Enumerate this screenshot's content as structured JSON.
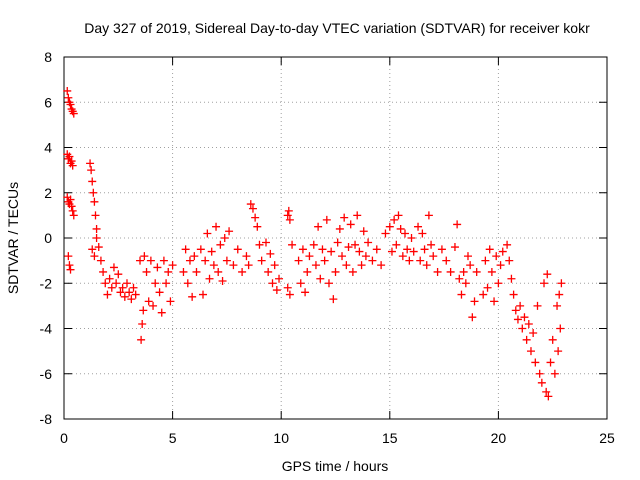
{
  "chart_data": {
    "type": "scatter",
    "title": "Day 327 of 2019, Sidereal Day-to-day VTEC variation (SDTVAR) for receiver kokr",
    "xlabel": "GPS time / hours",
    "ylabel": "SDTVAR / TECUs",
    "xlim": [
      0,
      25
    ],
    "ylim": [
      -8,
      8
    ],
    "xticks": [
      0,
      5,
      10,
      15,
      20,
      25
    ],
    "yticks": [
      -8,
      -6,
      -4,
      -2,
      0,
      2,
      4,
      6,
      8
    ],
    "grid": true,
    "marker": "+",
    "color": "#ff0000",
    "series": [
      {
        "name": "SDTVAR",
        "points": [
          [
            0.15,
            6.5
          ],
          [
            0.2,
            6.2
          ],
          [
            0.25,
            6.0
          ],
          [
            0.3,
            5.9
          ],
          [
            0.35,
            5.7
          ],
          [
            0.4,
            5.6
          ],
          [
            0.45,
            5.5
          ],
          [
            0.15,
            3.7
          ],
          [
            0.2,
            3.5
          ],
          [
            0.25,
            3.6
          ],
          [
            0.3,
            3.3
          ],
          [
            0.35,
            3.4
          ],
          [
            0.4,
            3.2
          ],
          [
            0.15,
            1.8
          ],
          [
            0.2,
            1.6
          ],
          [
            0.25,
            1.5
          ],
          [
            0.3,
            1.7
          ],
          [
            0.35,
            1.4
          ],
          [
            0.4,
            1.2
          ],
          [
            0.45,
            1.0
          ],
          [
            0.2,
            -0.8
          ],
          [
            0.25,
            -1.2
          ],
          [
            0.3,
            -1.4
          ],
          [
            1.2,
            3.3
          ],
          [
            1.25,
            3.0
          ],
          [
            1.3,
            2.5
          ],
          [
            1.35,
            2.0
          ],
          [
            1.4,
            1.6
          ],
          [
            1.45,
            1.0
          ],
          [
            1.5,
            0.4
          ],
          [
            1.3,
            -0.5
          ],
          [
            1.4,
            -0.8
          ],
          [
            1.5,
            0.0
          ],
          [
            1.6,
            -0.4
          ],
          [
            1.7,
            -1.0
          ],
          [
            1.8,
            -1.5
          ],
          [
            1.9,
            -2.0
          ],
          [
            2.0,
            -2.5
          ],
          [
            2.1,
            -1.8
          ],
          [
            2.2,
            -2.2
          ],
          [
            2.3,
            -1.3
          ],
          [
            2.4,
            -2.0
          ],
          [
            2.5,
            -1.6
          ],
          [
            2.6,
            -2.4
          ],
          [
            2.7,
            -2.2
          ],
          [
            2.8,
            -2.6
          ],
          [
            2.9,
            -2.0
          ],
          [
            3.0,
            -2.4
          ],
          [
            3.1,
            -2.7
          ],
          [
            3.2,
            -2.2
          ],
          [
            3.3,
            -2.5
          ],
          [
            3.5,
            -1.0
          ],
          [
            3.55,
            -4.5
          ],
          [
            3.6,
            -3.8
          ],
          [
            3.65,
            -3.2
          ],
          [
            3.7,
            -0.8
          ],
          [
            3.8,
            -1.5
          ],
          [
            3.9,
            -2.8
          ],
          [
            4.0,
            -1.0
          ],
          [
            4.1,
            -3.0
          ],
          [
            4.2,
            -2.0
          ],
          [
            4.3,
            -1.3
          ],
          [
            4.4,
            -2.4
          ],
          [
            4.5,
            -3.3
          ],
          [
            4.6,
            -1.0
          ],
          [
            4.7,
            -2.0
          ],
          [
            4.8,
            -1.5
          ],
          [
            4.9,
            -2.8
          ],
          [
            5.0,
            -1.2
          ],
          [
            5.5,
            -1.5
          ],
          [
            5.6,
            -0.5
          ],
          [
            5.7,
            -2.0
          ],
          [
            5.8,
            -1.0
          ],
          [
            5.9,
            -2.6
          ],
          [
            6.0,
            -0.8
          ],
          [
            6.1,
            -1.5
          ],
          [
            6.3,
            -0.5
          ],
          [
            6.4,
            -2.5
          ],
          [
            6.5,
            -1.0
          ],
          [
            6.6,
            0.2
          ],
          [
            6.7,
            -1.8
          ],
          [
            6.8,
            -0.6
          ],
          [
            6.9,
            -1.2
          ],
          [
            7.0,
            0.5
          ],
          [
            7.1,
            -1.5
          ],
          [
            7.2,
            -0.3
          ],
          [
            7.3,
            -1.9
          ],
          [
            7.4,
            0.0
          ],
          [
            7.5,
            -1.0
          ],
          [
            7.6,
            0.3
          ],
          [
            7.8,
            -1.2
          ],
          [
            8.0,
            -0.5
          ],
          [
            8.2,
            -1.5
          ],
          [
            8.4,
            -0.8
          ],
          [
            8.5,
            -1.2
          ],
          [
            8.6,
            1.5
          ],
          [
            8.7,
            1.3
          ],
          [
            8.8,
            0.9
          ],
          [
            8.9,
            0.5
          ],
          [
            9.0,
            -0.3
          ],
          [
            9.1,
            -1.0
          ],
          [
            9.3,
            -0.2
          ],
          [
            9.4,
            -1.5
          ],
          [
            9.5,
            -0.7
          ],
          [
            9.6,
            -2.0
          ],
          [
            9.7,
            -1.2
          ],
          [
            9.8,
            -2.3
          ],
          [
            9.9,
            -1.8
          ],
          [
            10.3,
            1.0
          ],
          [
            10.35,
            1.2
          ],
          [
            10.4,
            0.8
          ],
          [
            10.3,
            -2.2
          ],
          [
            10.4,
            -2.5
          ],
          [
            10.5,
            -0.3
          ],
          [
            10.8,
            -1.0
          ],
          [
            10.9,
            -2.0
          ],
          [
            11.0,
            -0.5
          ],
          [
            11.1,
            -2.4
          ],
          [
            11.2,
            -1.5
          ],
          [
            11.3,
            -0.8
          ],
          [
            11.5,
            -0.3
          ],
          [
            11.6,
            -1.2
          ],
          [
            11.7,
            0.5
          ],
          [
            11.8,
            -1.8
          ],
          [
            11.9,
            -0.5
          ],
          [
            12.0,
            -1.0
          ],
          [
            12.1,
            0.8
          ],
          [
            12.2,
            -2.0
          ],
          [
            12.3,
            -0.6
          ],
          [
            12.4,
            -2.7
          ],
          [
            12.5,
            -1.5
          ],
          [
            12.6,
            -0.2
          ],
          [
            12.7,
            0.4
          ],
          [
            12.8,
            -0.8
          ],
          [
            12.9,
            0.9
          ],
          [
            13.0,
            -1.2
          ],
          [
            13.1,
            -0.4
          ],
          [
            13.2,
            0.6
          ],
          [
            13.3,
            -1.5
          ],
          [
            13.4,
            -0.3
          ],
          [
            13.5,
            1.0
          ],
          [
            13.6,
            -0.6
          ],
          [
            13.7,
            -1.2
          ],
          [
            13.8,
            0.3
          ],
          [
            13.9,
            -0.8
          ],
          [
            14.0,
            -0.2
          ],
          [
            14.2,
            -1.0
          ],
          [
            14.4,
            -0.5
          ],
          [
            14.6,
            -1.2
          ],
          [
            14.8,
            0.2
          ],
          [
            15.0,
            0.5
          ],
          [
            15.1,
            -0.6
          ],
          [
            15.2,
            0.8
          ],
          [
            15.3,
            -0.3
          ],
          [
            15.4,
            1.0
          ],
          [
            15.5,
            0.4
          ],
          [
            15.6,
            -0.8
          ],
          [
            15.7,
            0.2
          ],
          [
            15.8,
            -0.5
          ],
          [
            15.9,
            -1.0
          ],
          [
            16.0,
            0.0
          ],
          [
            16.1,
            -0.6
          ],
          [
            16.3,
            0.5
          ],
          [
            16.4,
            -1.0
          ],
          [
            16.5,
            0.2
          ],
          [
            16.6,
            -0.5
          ],
          [
            16.7,
            -1.2
          ],
          [
            16.8,
            1.0
          ],
          [
            16.9,
            -0.3
          ],
          [
            17.0,
            -0.8
          ],
          [
            17.2,
            -1.5
          ],
          [
            17.4,
            -0.5
          ],
          [
            17.6,
            -1.0
          ],
          [
            17.8,
            -1.5
          ],
          [
            18.0,
            -0.4
          ],
          [
            18.1,
            0.6
          ],
          [
            18.2,
            -1.8
          ],
          [
            18.3,
            -2.5
          ],
          [
            18.4,
            -1.5
          ],
          [
            18.5,
            -2.0
          ],
          [
            18.6,
            -0.8
          ],
          [
            18.7,
            -1.2
          ],
          [
            18.8,
            -3.5
          ],
          [
            18.9,
            -2.8
          ],
          [
            19.0,
            -1.5
          ],
          [
            19.3,
            -2.5
          ],
          [
            19.4,
            -1.0
          ],
          [
            19.5,
            -2.2
          ],
          [
            19.6,
            -0.5
          ],
          [
            19.7,
            -1.5
          ],
          [
            19.8,
            -2.8
          ],
          [
            19.9,
            -0.8
          ],
          [
            20.0,
            -2.0
          ],
          [
            20.1,
            -1.2
          ],
          [
            20.2,
            -0.6
          ],
          [
            20.4,
            -0.3
          ],
          [
            20.5,
            -1.0
          ],
          [
            20.6,
            -1.8
          ],
          [
            20.7,
            -2.5
          ],
          [
            20.8,
            -3.2
          ],
          [
            20.9,
            -3.6
          ],
          [
            21.0,
            -3.0
          ],
          [
            21.1,
            -4.0
          ],
          [
            21.2,
            -3.5
          ],
          [
            21.3,
            -4.5
          ],
          [
            21.4,
            -3.8
          ],
          [
            21.5,
            -5.0
          ],
          [
            21.6,
            -4.2
          ],
          [
            21.7,
            -5.5
          ],
          [
            21.8,
            -3.0
          ],
          [
            21.9,
            -6.0
          ],
          [
            22.0,
            -6.4
          ],
          [
            22.1,
            -2.0
          ],
          [
            22.2,
            -6.8
          ],
          [
            22.25,
            -1.6
          ],
          [
            22.3,
            -7.0
          ],
          [
            22.4,
            -5.5
          ],
          [
            22.5,
            -4.5
          ],
          [
            22.6,
            -6.0
          ],
          [
            22.7,
            -3.0
          ],
          [
            22.75,
            -5.0
          ],
          [
            22.8,
            -2.5
          ],
          [
            22.85,
            -4.0
          ],
          [
            22.9,
            -2.0
          ]
        ]
      }
    ]
  }
}
